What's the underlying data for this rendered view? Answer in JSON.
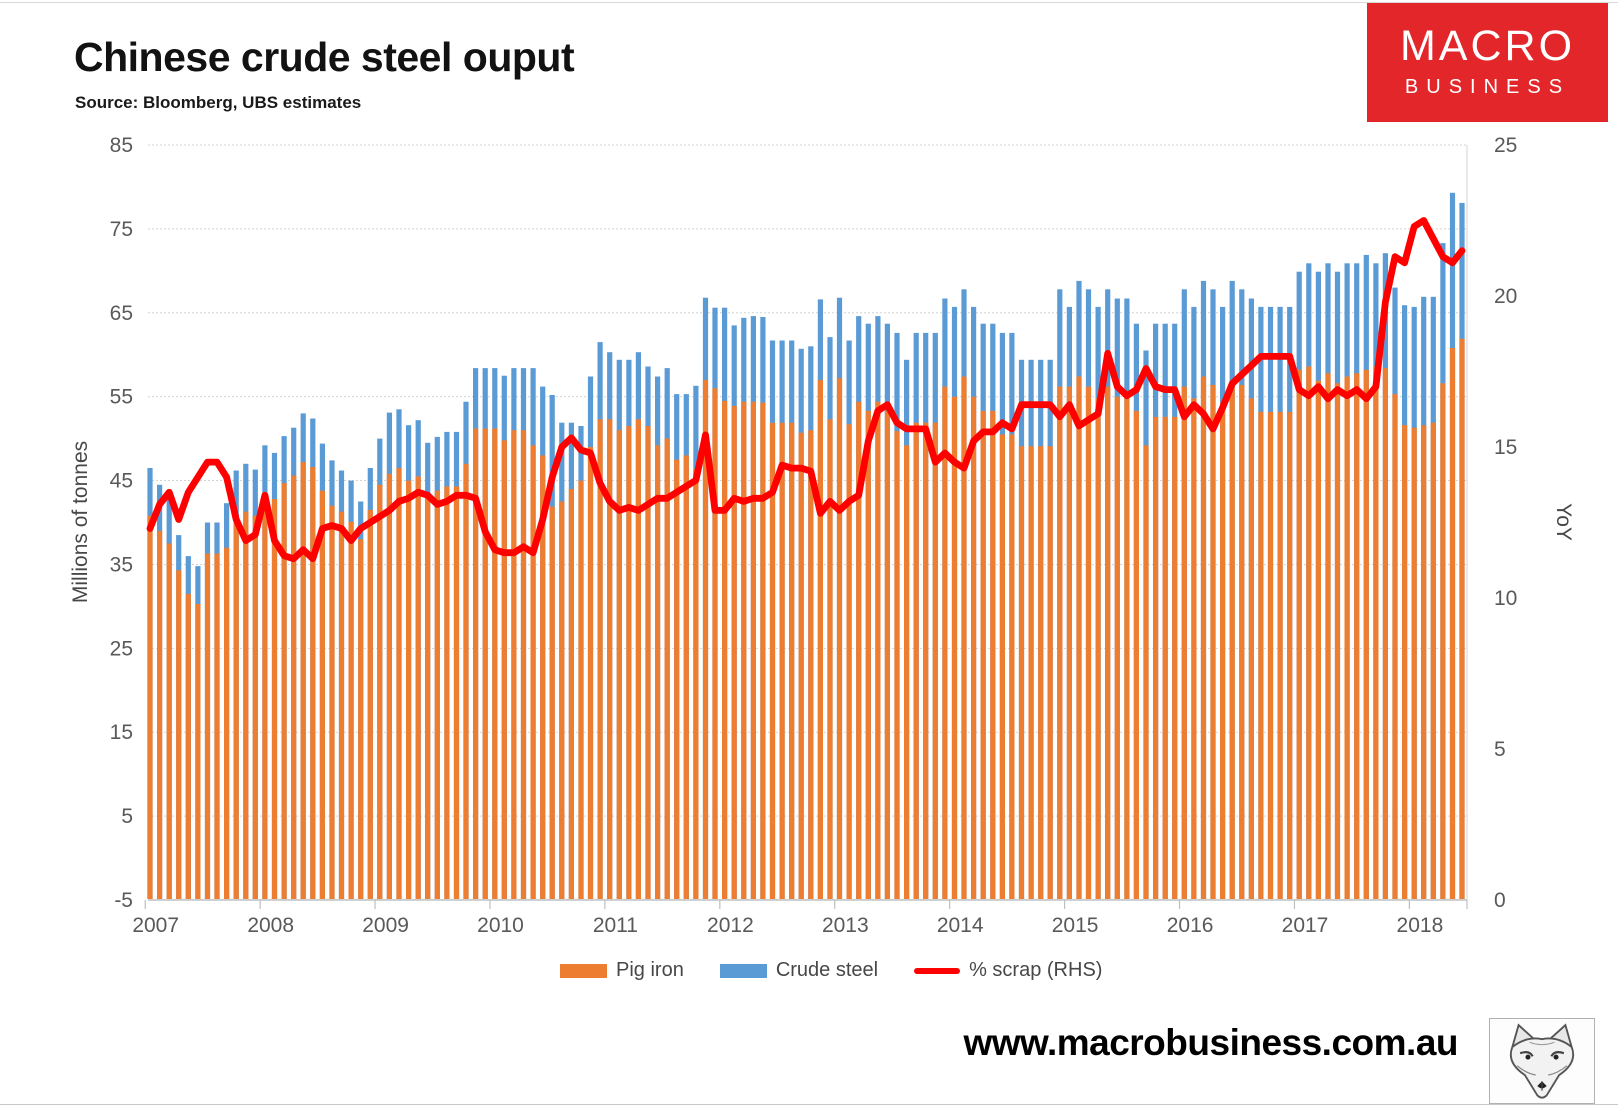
{
  "header": {
    "title": "Chinese crude steel ouput",
    "source": "Source: Bloomberg, UBS estimates",
    "logo": {
      "line1": "MACRO",
      "line2": "BUSINESS",
      "bg": "#e2262a",
      "text_color": "#ffffff"
    }
  },
  "footer": {
    "url": "www.macrobusiness.com.au",
    "fox_logo": "fox-sketch-logo"
  },
  "chart_data": {
    "type": "bar+line",
    "title": "Chinese crude steel ouput",
    "x_start": "2007-01",
    "x_end": "2018-06",
    "year_labels": [
      "2007",
      "2008",
      "2009",
      "2010",
      "2011",
      "2012",
      "2013",
      "2014",
      "2015",
      "2016",
      "2017",
      "2018"
    ],
    "left_axis": {
      "label": "Millions of tonnes",
      "range": [
        -5,
        85
      ],
      "ticks": [
        85,
        75,
        65,
        55,
        45,
        35,
        25,
        15,
        5,
        -5
      ]
    },
    "right_axis": {
      "label": "YoY",
      "range": [
        0,
        25
      ],
      "ticks": [
        25,
        20,
        15,
        10,
        5,
        0
      ]
    },
    "grid": "horizontal",
    "legend_position": "bottom",
    "colors": {
      "pig_iron": "#ED7D31",
      "crude_steel": "#5B9BD5",
      "scrap": "#FF0000",
      "gridline": "#d3d3d3",
      "axis": "#bfbfbf",
      "tick_text": "#595959"
    },
    "series": [
      {
        "name": "Pig iron",
        "type": "bar",
        "axis": "left",
        "color": "#ED7D31",
        "values": [
          40.8,
          39.0,
          37.5,
          34.3,
          31.5,
          30.3,
          36.3,
          36.3,
          37.0,
          40.3,
          41.3,
          40.8,
          43.6,
          42.8,
          44.7,
          45.6,
          47.2,
          46.6,
          43.8,
          42.0,
          41.3,
          40.1,
          38.0,
          41.5,
          44.5,
          45.8,
          46.5,
          45.0,
          45.5,
          43.2,
          43.8,
          44.3,
          44.3,
          47.0,
          51.2,
          51.2,
          51.2,
          49.8,
          51.0,
          51.0,
          49.2,
          48.0,
          41.9,
          42.5,
          44.0,
          45.0,
          49.0,
          52.3,
          52.3,
          51.0,
          51.5,
          52.3,
          51.5,
          49.2,
          50.0,
          47.5,
          48.0,
          46.4,
          57.0,
          56.0,
          54.5,
          53.9,
          54.4,
          54.4,
          54.3,
          51.9,
          51.9,
          51.9,
          50.7,
          51.0,
          57.0,
          52.3,
          57.2,
          51.7,
          54.4,
          53.3,
          54.4,
          53.3,
          50.9,
          49.2,
          51.9,
          51.9,
          51.9,
          56.2,
          55.0,
          57.4,
          55.0,
          53.3,
          53.3,
          50.5,
          50.5,
          49.1,
          49.1,
          49.1,
          49.1,
          56.2,
          56.2,
          57.4,
          56.2,
          54.8,
          56.2,
          55.0,
          55.0,
          53.3,
          49.2,
          52.6,
          52.6,
          52.6,
          56.2,
          54.8,
          57.4,
          56.4,
          54.3,
          56.9,
          56.4,
          54.8,
          53.2,
          53.2,
          53.2,
          53.2,
          58.2,
          58.6,
          56.9,
          57.8,
          56.6,
          57.4,
          57.8,
          58.2,
          58.6,
          58.4,
          55.3,
          51.6,
          51.3,
          51.6,
          51.9,
          56.6,
          60.8,
          61.9
        ]
      },
      {
        "name": "Crude steel",
        "type": "bar",
        "axis": "left",
        "color": "#5B9BD5",
        "values": [
          46.5,
          44.5,
          43.0,
          38.5,
          36.0,
          34.8,
          40.0,
          40.0,
          42.3,
          46.2,
          47.0,
          46.3,
          49.2,
          48.3,
          50.3,
          51.3,
          53.0,
          52.4,
          49.4,
          47.4,
          46.2,
          45.0,
          42.5,
          46.5,
          50.0,
          53.1,
          53.5,
          51.6,
          52.2,
          49.5,
          50.2,
          50.8,
          50.8,
          54.4,
          58.4,
          58.4,
          58.4,
          57.5,
          58.4,
          58.4,
          58.4,
          56.2,
          55.2,
          51.9,
          51.9,
          51.5,
          57.4,
          61.5,
          60.3,
          59.4,
          59.4,
          60.3,
          58.6,
          57.4,
          58.4,
          55.3,
          55.3,
          56.3,
          66.8,
          65.6,
          65.6,
          63.5,
          64.4,
          64.6,
          64.5,
          61.7,
          61.7,
          61.7,
          60.7,
          61.0,
          66.6,
          62.1,
          66.8,
          61.7,
          64.6,
          63.7,
          64.6,
          63.7,
          62.6,
          59.4,
          62.6,
          62.6,
          62.6,
          66.7,
          65.7,
          67.8,
          65.7,
          63.7,
          63.7,
          62.6,
          62.6,
          59.4,
          59.4,
          59.4,
          59.4,
          67.8,
          65.7,
          68.8,
          67.8,
          65.7,
          67.8,
          66.7,
          66.7,
          63.7,
          60.5,
          63.7,
          63.7,
          63.7,
          67.8,
          65.7,
          68.8,
          67.8,
          65.7,
          68.8,
          67.8,
          66.7,
          65.7,
          65.7,
          65.7,
          65.7,
          69.9,
          70.9,
          69.9,
          70.9,
          69.9,
          70.9,
          70.9,
          71.9,
          70.9,
          72.1,
          68.0,
          65.9,
          65.7,
          66.9,
          66.9,
          73.3,
          79.3,
          78.1
        ]
      },
      {
        "name": "% scrap (RHS)",
        "type": "line",
        "axis": "right",
        "color": "#FF0000",
        "values": [
          12.3,
          13.1,
          13.5,
          12.6,
          13.5,
          14.0,
          14.5,
          14.5,
          14.0,
          12.6,
          11.9,
          12.1,
          13.4,
          11.9,
          11.4,
          11.3,
          11.6,
          11.3,
          12.3,
          12.4,
          12.3,
          11.9,
          12.3,
          12.5,
          12.7,
          12.9,
          13.2,
          13.3,
          13.5,
          13.4,
          13.1,
          13.2,
          13.4,
          13.4,
          13.3,
          12.2,
          11.6,
          11.5,
          11.5,
          11.7,
          11.5,
          12.6,
          14.0,
          15.0,
          15.3,
          14.9,
          14.8,
          13.8,
          13.2,
          12.9,
          13.0,
          12.9,
          13.1,
          13.3,
          13.3,
          13.5,
          13.7,
          13.9,
          15.4,
          12.9,
          12.9,
          13.3,
          13.2,
          13.3,
          13.3,
          13.5,
          14.4,
          14.3,
          14.3,
          14.2,
          12.8,
          13.2,
          12.9,
          13.2,
          13.4,
          15.2,
          16.2,
          16.4,
          15.8,
          15.6,
          15.6,
          15.6,
          14.5,
          14.8,
          14.5,
          14.3,
          15.2,
          15.5,
          15.5,
          15.8,
          15.6,
          16.4,
          16.4,
          16.4,
          16.4,
          16.0,
          16.4,
          15.7,
          15.9,
          16.1,
          18.1,
          17.0,
          16.7,
          16.9,
          17.6,
          17.0,
          16.9,
          16.9,
          16.0,
          16.4,
          16.1,
          15.6,
          16.3,
          17.1,
          17.4,
          17.7,
          18.0,
          18.0,
          18.0,
          18.0,
          16.9,
          16.7,
          17.0,
          16.6,
          16.9,
          16.7,
          16.9,
          16.6,
          17.0,
          19.8,
          21.3,
          21.1,
          22.3,
          22.5,
          21.9,
          21.3,
          21.1,
          21.5
        ]
      }
    ]
  }
}
